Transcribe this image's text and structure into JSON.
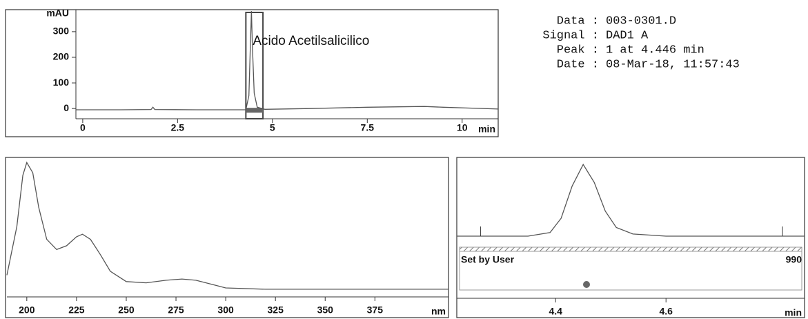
{
  "chart_data": [
    {
      "type": "line",
      "x_label": "min",
      "y_label": "mAU",
      "annotation": "Acido Acetilsalicilico",
      "x": [
        -0.18,
        1.0,
        1.8,
        1.85,
        1.9,
        3.0,
        4.3,
        4.38,
        4.42,
        4.446,
        4.47,
        4.52,
        4.6,
        4.8,
        6.0,
        7.5,
        9.0,
        9.5,
        10.95
      ],
      "values": [
        -5,
        -5,
        -4,
        5,
        -4,
        -5,
        -5,
        50,
        250,
        380,
        250,
        60,
        5,
        -3,
        0,
        5,
        8,
        5,
        -2
      ],
      "highlight": [
        4.3,
        4.75
      ],
      "xlim": [
        -0.18,
        10.95
      ],
      "ylim": [
        -40,
        386
      ],
      "xticks": [
        0,
        2.5,
        5,
        7.5,
        10
      ],
      "yticks": [
        0,
        100,
        200,
        300
      ],
      "color": "#555"
    },
    {
      "type": "line",
      "x_label": "nm",
      "x": [
        190,
        195,
        198,
        200,
        203,
        206,
        210,
        215,
        220,
        225,
        228,
        232,
        237,
        242,
        250,
        260,
        270,
        278,
        285,
        295,
        300,
        320,
        400,
        412
      ],
      "values": [
        0.12,
        0.5,
        0.9,
        1.0,
        0.92,
        0.65,
        0.4,
        0.32,
        0.35,
        0.42,
        0.44,
        0.4,
        0.28,
        0.15,
        0.07,
        0.06,
        0.08,
        0.09,
        0.08,
        0.04,
        0.02,
        0.01,
        0.01,
        0.01
      ],
      "xlim": [
        190,
        412
      ],
      "ylim": [
        -0.05,
        1.04
      ],
      "xticks": [
        200,
        225,
        250,
        275,
        300,
        325,
        350,
        375
      ],
      "color": "#555"
    },
    {
      "type": "line",
      "x_label": "min",
      "band_label": "Set by User",
      "threshold": 990,
      "x": [
        4.221,
        4.35,
        4.39,
        4.41,
        4.43,
        4.45,
        4.47,
        4.49,
        4.51,
        4.54,
        4.6,
        4.851
      ],
      "values": [
        0,
        0,
        0.05,
        0.25,
        0.7,
        1.0,
        0.75,
        0.35,
        0.12,
        0.03,
        0,
        0
      ],
      "markers": [
        4.264,
        4.811
      ],
      "purity_point": 4.456,
      "xlim": [
        4.221,
        4.851
      ],
      "ylim": [
        0,
        1.06
      ],
      "xticks": [
        4.4,
        4.6
      ],
      "color": "#555"
    }
  ],
  "info": {
    "rows": [
      {
        "label": "Data :",
        "value": "003-0301.D"
      },
      {
        "label": "Signal :",
        "value": "DAD1 A"
      },
      {
        "label": "Peak :",
        "value": "1 at 4.446 min"
      },
      {
        "label": "Date :",
        "value": "08-Mar-18, 11:57:43"
      }
    ]
  }
}
